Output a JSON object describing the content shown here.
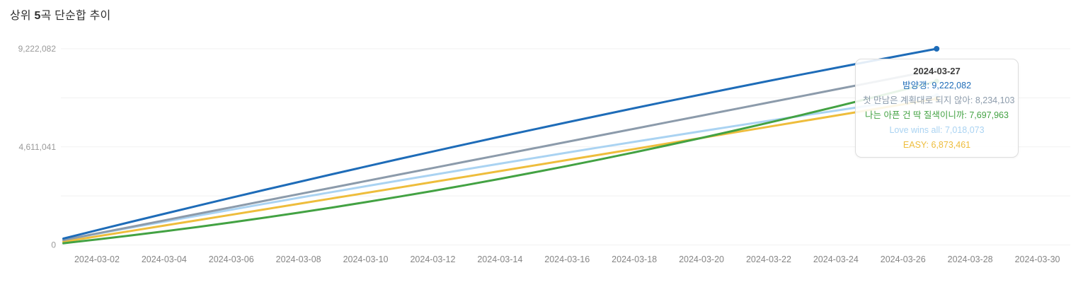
{
  "title": {
    "prefix": "상위 ",
    "bold": "5",
    "suffix": "곡 단순합 추이"
  },
  "colors": {
    "series_blue": "#1e6cb8",
    "series_gray": "#8c9bab",
    "series_green": "#43a243",
    "series_lightblue": "#aad3f2",
    "series_yellow": "#eebd3c",
    "grid": "#f1f1f1",
    "y_axis_text": "#9a9a9a",
    "x_axis_text": "#858585"
  },
  "chart_data": {
    "type": "line",
    "title": "상위 5곡 단순합 추이",
    "xlabel": "",
    "ylabel": "",
    "y_max": 9222082,
    "grid": "horizontal-only",
    "legend_position": "none",
    "x_dates": [
      "2024-03-01",
      "2024-03-02",
      "2024-03-03",
      "2024-03-04",
      "2024-03-05",
      "2024-03-06",
      "2024-03-07",
      "2024-03-08",
      "2024-03-09",
      "2024-03-10",
      "2024-03-11",
      "2024-03-12",
      "2024-03-13",
      "2024-03-14",
      "2024-03-15",
      "2024-03-16",
      "2024-03-17",
      "2024-03-18",
      "2024-03-19",
      "2024-03-20",
      "2024-03-21",
      "2024-03-22",
      "2024-03-23",
      "2024-03-24",
      "2024-03-25",
      "2024-03-26",
      "2024-03-27"
    ],
    "x_tick_labels": [
      "2024-03-02",
      "2024-03-04",
      "2024-03-06",
      "2024-03-08",
      "2024-03-10",
      "2024-03-12",
      "2024-03-14",
      "2024-03-16",
      "2024-03-18",
      "2024-03-20",
      "2024-03-22",
      "2024-03-24",
      "2024-03-26",
      "2024-03-28",
      "2024-03-30"
    ],
    "x_tick_days": [
      2,
      4,
      6,
      8,
      10,
      12,
      14,
      16,
      18,
      20,
      22,
      24,
      26,
      28,
      30
    ],
    "y_ticks": [
      {
        "value": 9222082,
        "label": "9,222,082"
      },
      {
        "value": 6916562,
        "label": ""
      },
      {
        "value": 4611041,
        "label": "4,611,041"
      },
      {
        "value": 2305520,
        "label": ""
      },
      {
        "value": 0,
        "label": "0"
      }
    ],
    "series": [
      {
        "name": "밤양갱",
        "color": "#1e6cb8",
        "end_value": 9222082,
        "values": [
          300000,
          691408,
          1078956,
          1462644,
          1842472,
          2218440,
          2590548,
          2958796,
          3323184,
          3683712,
          4040380,
          4393188,
          4742136,
          5087224,
          5428452,
          5765820,
          6099328,
          6428976,
          6754764,
          7076692,
          7394760,
          7708968,
          8019316,
          8325804,
          8628432,
          8927200,
          9222082
        ]
      },
      {
        "name": "첫 만남은 계획대로 되지 않아",
        "color": "#8c9bab",
        "end_value": 8234103,
        "values": [
          230000,
          537850,
          845700,
          1153550,
          1461400,
          1769250,
          2077100,
          2384950,
          2692800,
          3000650,
          3308500,
          3616350,
          3924200,
          4232050,
          4539900,
          4847750,
          5155600,
          5463450,
          5771300,
          6079150,
          6387000,
          6694850,
          7002700,
          7310550,
          7618400,
          7926250,
          8234103
        ]
      },
      {
        "name": "나는 아픈 건 딱 질색이니까",
        "color": "#43a243",
        "end_value": 7697963,
        "values": [
          80000,
          257400,
          444048,
          639944,
          845088,
          1059480,
          1283120,
          1516008,
          1758144,
          2009528,
          2270160,
          2540040,
          2819168,
          3107544,
          3405168,
          3712040,
          4028160,
          4353528,
          4688144,
          5032008,
          5385120,
          5747480,
          6119088,
          6499944,
          6890048,
          7289400,
          7697963
        ]
      },
      {
        "name": "Love wins all",
        "color": "#aad3f2",
        "end_value": 7018073,
        "values": [
          230000,
          520331,
          808322,
          1093973,
          1377284,
          1658255,
          1936886,
          2213177,
          2487128,
          2758739,
          3028010,
          3294941,
          3559532,
          3821783,
          4081694,
          4339265,
          4594496,
          4847387,
          5097938,
          5346149,
          5592020,
          5835551,
          6076742,
          6315593,
          6552104,
          6786275,
          7018073
        ]
      },
      {
        "name": "EASY",
        "color": "#eebd3c",
        "end_value": 6873461,
        "values": [
          150000,
          402777,
          656019,
          909727,
          1163899,
          1418538,
          1673641,
          1929210,
          2185244,
          2441743,
          2698707,
          2956137,
          3214032,
          3472392,
          3731218,
          3990509,
          4250265,
          4510486,
          4771173,
          5032325,
          5293942,
          5556025,
          5818573,
          6081586,
          6345064,
          6609008,
          6873461
        ]
      }
    ]
  },
  "tooltip": {
    "date": "2024-03-27",
    "items": [
      {
        "label": "밤양갱",
        "value": "9,222,082",
        "color": "#1e6cb8"
      },
      {
        "label": "첫 만남은 계획대로 되지 않아",
        "value": "8,234,103",
        "color": "#8c9bab"
      },
      {
        "label": "나는 아픈 건 딱 질색이니까",
        "value": "7,697,963",
        "color": "#43a243"
      },
      {
        "label": "Love wins all",
        "value": "7,018,073",
        "color": "#aad3f2"
      },
      {
        "label": "EASY",
        "value": "6,873,461",
        "color": "#eebd3c"
      }
    ]
  }
}
